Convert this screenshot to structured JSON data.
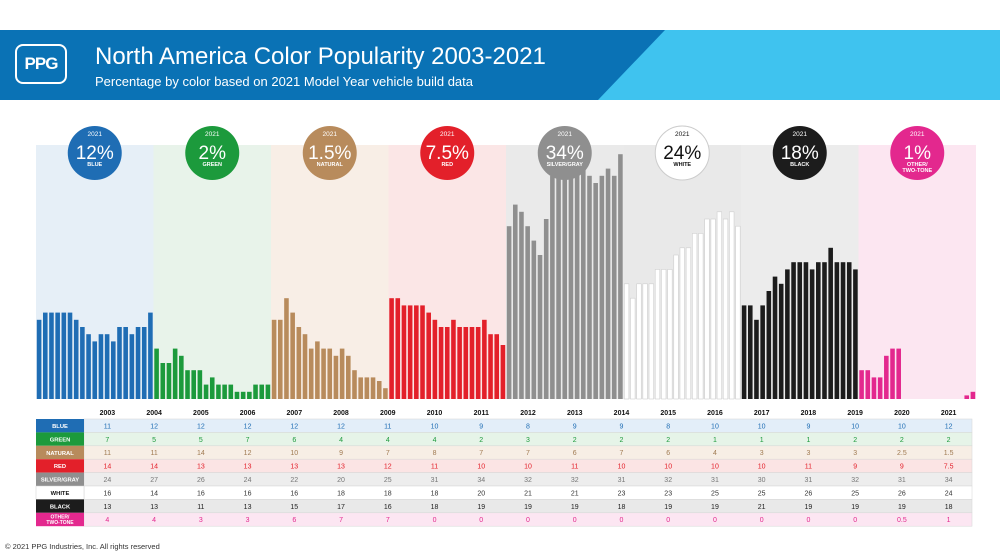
{
  "header": {
    "logo_text": "PPG",
    "title": "North America Color Popularity 2003-2021",
    "subtitle": "Percentage by color based on 2021 Model Year vehicle build data"
  },
  "footer": {
    "copyright": "© 2021 PPG Industries, Inc. All rights reserved"
  },
  "colors": {
    "banner": "#0a72b5",
    "banner_accent": "#3fc3ef"
  },
  "chart_data": {
    "type": "bar",
    "title": "North America Color Popularity 2003-2021",
    "subtitle": "Percentage by color based on 2021 Model Year vehicle build data",
    "x": [
      "2003",
      "2004",
      "2005",
      "2006",
      "2007",
      "2008",
      "2009",
      "2010",
      "2011",
      "2012",
      "2013",
      "2014",
      "2015",
      "2016",
      "2017",
      "2018",
      "2019",
      "2020",
      "2021"
    ],
    "year_label": "2021",
    "series": [
      {
        "name": "BLUE",
        "badge_label": "BLUE",
        "headline": "12%",
        "color": "#1f6db4",
        "panel_bg": "#e6eff7",
        "row_bg": "#e3eef9",
        "row_text": "#1f6db4",
        "label_bg": "#1f6db4",
        "label_text": "#ffffff",
        "bar_stroke": "",
        "values": [
          11,
          12,
          12,
          12,
          12,
          12,
          11,
          10,
          9,
          8,
          9,
          9,
          8,
          10,
          10,
          9,
          10,
          10,
          12
        ]
      },
      {
        "name": "GREEN",
        "badge_label": "GREEN",
        "headline": "2%",
        "color": "#1c9a3c",
        "panel_bg": "#e8f3ea",
        "row_bg": "#e6f4e8",
        "row_text": "#1c9a3c",
        "label_bg": "#1c9a3c",
        "label_text": "#ffffff",
        "bar_stroke": "",
        "values": [
          7,
          5,
          5,
          7,
          6,
          4,
          4,
          4,
          2,
          3,
          2,
          2,
          2,
          1,
          1,
          1,
          2,
          2,
          2
        ]
      },
      {
        "name": "NATURAL",
        "badge_label": "NATURAL",
        "headline": "1.5%",
        "color": "#b88b5c",
        "panel_bg": "#f8eee6",
        "row_bg": "#f7eee5",
        "row_text": "#a07b52",
        "label_bg": "#b88b5c",
        "label_text": "#ffffff",
        "bar_stroke": "",
        "values": [
          11,
          11,
          14,
          12,
          10,
          9,
          7,
          8,
          7,
          7,
          6,
          7,
          6,
          4,
          3,
          3,
          3,
          2.5,
          1.5
        ]
      },
      {
        "name": "RED",
        "badge_label": "RED",
        "headline": "7.5%",
        "color": "#e3202a",
        "panel_bg": "#fbe6e6",
        "row_bg": "#fbe4e4",
        "row_text": "#e3202a",
        "label_bg": "#e3202a",
        "label_text": "#ffffff",
        "bar_stroke": "",
        "values": [
          14,
          14,
          13,
          13,
          13,
          13,
          12,
          11,
          10,
          10,
          11,
          10,
          10,
          10,
          10,
          11,
          9,
          9,
          7.5
        ]
      },
      {
        "name": "SILVER/GRAY",
        "badge_label": "SILVER/GRAY",
        "headline": "34%",
        "color": "#8f8f8f",
        "panel_bg": "#eaeaea",
        "row_bg": "#ededed",
        "row_text": "#777777",
        "label_bg": "#8f8f8f",
        "label_text": "#ffffff",
        "bar_stroke": "",
        "values": [
          24,
          27,
          26,
          24,
          22,
          20,
          25,
          31,
          34,
          32,
          32,
          31,
          32,
          31,
          30,
          31,
          32,
          31,
          34
        ]
      },
      {
        "name": "WHITE",
        "badge_label": "WHITE",
        "headline": "24%",
        "color": "#ffffff",
        "panel_bg": "#e9e9e9",
        "row_bg": "#ffffff",
        "row_text": "#333333",
        "label_bg": "#ffffff",
        "label_text": "#111111",
        "bar_stroke": "#cfcfcf",
        "values": [
          16,
          14,
          16,
          16,
          16,
          18,
          18,
          18,
          20,
          21,
          21,
          23,
          23,
          25,
          25,
          26,
          25,
          26,
          24
        ]
      },
      {
        "name": "BLACK",
        "badge_label": "BLACK",
        "headline": "18%",
        "color": "#1c1c1c",
        "panel_bg": "#ececec",
        "row_bg": "#e9e9e9",
        "row_text": "#222222",
        "label_bg": "#1c1c1c",
        "label_text": "#ffffff",
        "bar_stroke": "",
        "values": [
          13,
          13,
          11,
          13,
          15,
          17,
          16,
          18,
          19,
          19,
          19,
          18,
          19,
          19,
          21,
          19,
          19,
          19,
          18
        ]
      },
      {
        "name": "OTHER/TWO-TONE",
        "badge_label": "OTHER/\nTWO-TONE",
        "headline": "1%",
        "color": "#e3288e",
        "panel_bg": "#fce6f1",
        "row_bg": "#fce6f2",
        "row_text": "#e3288e",
        "label_bg": "#e3288e",
        "label_text": "#ffffff",
        "bar_stroke": "",
        "values": [
          4,
          4,
          3,
          3,
          6,
          7,
          7,
          0,
          0,
          0,
          0,
          0,
          0,
          0,
          0,
          0,
          0,
          0.5,
          1
        ]
      }
    ],
    "table": {
      "rows": [
        {
          "label": "BLUE",
          "cells": [
            "11",
            "12",
            "12",
            "12",
            "12",
            "12",
            "11",
            "10",
            "9",
            "8",
            "9",
            "9",
            "8",
            "10",
            "10",
            "9",
            "10",
            "10",
            "12"
          ]
        },
        {
          "label": "GREEN",
          "cells": [
            "7",
            "5",
            "5",
            "7",
            "6",
            "4",
            "4",
            "4",
            "2",
            "3",
            "2",
            "2",
            "2",
            "1",
            "1",
            "1",
            "2",
            "2",
            "2"
          ]
        },
        {
          "label": "NATURAL",
          "cells": [
            "11",
            "11",
            "14",
            "12",
            "10",
            "9",
            "7",
            "8",
            "7",
            "7",
            "6",
            "7",
            "6",
            "4",
            "3",
            "3",
            "3",
            "2.5",
            "1.5"
          ]
        },
        {
          "label": "RED",
          "cells": [
            "14",
            "14",
            "13",
            "13",
            "13",
            "13",
            "12",
            "11",
            "10",
            "10",
            "11",
            "10",
            "10",
            "10",
            "10",
            "11",
            "9",
            "9",
            "7.5"
          ]
        },
        {
          "label": "SILVER/GRAY",
          "cells": [
            "24",
            "27",
            "26",
            "24",
            "22",
            "20",
            "25",
            "31",
            "34",
            "32",
            "32",
            "31",
            "32",
            "31",
            "30",
            "31",
            "32",
            "31",
            "34"
          ]
        },
        {
          "label": "WHITE",
          "cells": [
            "16",
            "14",
            "16",
            "16",
            "16",
            "18",
            "18",
            "18",
            "20",
            "21",
            "21",
            "23",
            "23",
            "25",
            "25",
            "26",
            "25",
            "26",
            "24"
          ]
        },
        {
          "label": "BLACK",
          "cells": [
            "13",
            "13",
            "11",
            "13",
            "15",
            "17",
            "16",
            "18",
            "19",
            "19",
            "19",
            "18",
            "19",
            "19",
            "21",
            "19",
            "19",
            "19",
            "18"
          ]
        },
        {
          "label": "OTHER/\nTWO-TONE",
          "cells": [
            "4",
            "4",
            "3",
            "3",
            "6",
            "7",
            "7",
            "0",
            "0",
            "0",
            "0",
            "0",
            "0",
            "0",
            "0",
            "0",
            "0",
            "0.5",
            "1"
          ]
        }
      ]
    },
    "ylim": [
      0,
      36
    ]
  }
}
